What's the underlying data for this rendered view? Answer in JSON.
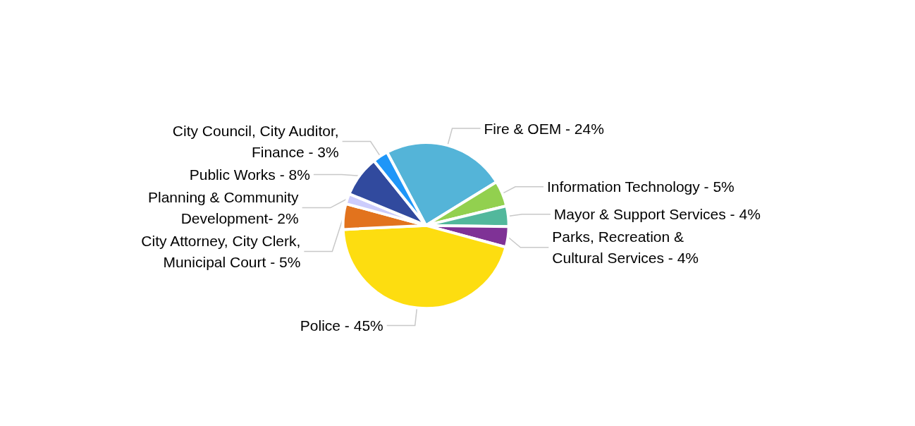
{
  "chart_data": {
    "type": "pie",
    "categories": [
      "Fire & OEM -",
      "Information Technology -",
      "Mayor & Support Services -",
      "Parks, Recreation &\nCultural Services -",
      "Police -",
      "City Attorney, City Clerk,\nMunicipal Court -",
      "Planning & Community\nDevelopment-",
      "Public Works -",
      "City Council, City Auditor,\nFinance -"
    ],
    "values": [
      24,
      5,
      4,
      4,
      45,
      5,
      2,
      8,
      3
    ],
    "value_labels": [
      "24%",
      "5%",
      "4%",
      "4%",
      "45%",
      "5%",
      "2%",
      "8%",
      "3%"
    ],
    "colors": [
      "#54b4d8",
      "#92d04f",
      "#52b89c",
      "#7f3296",
      "#fddd10",
      "#e2731d",
      "#ccccfc",
      "#314a9e",
      "#1e96f8"
    ],
    "legend": false
  }
}
